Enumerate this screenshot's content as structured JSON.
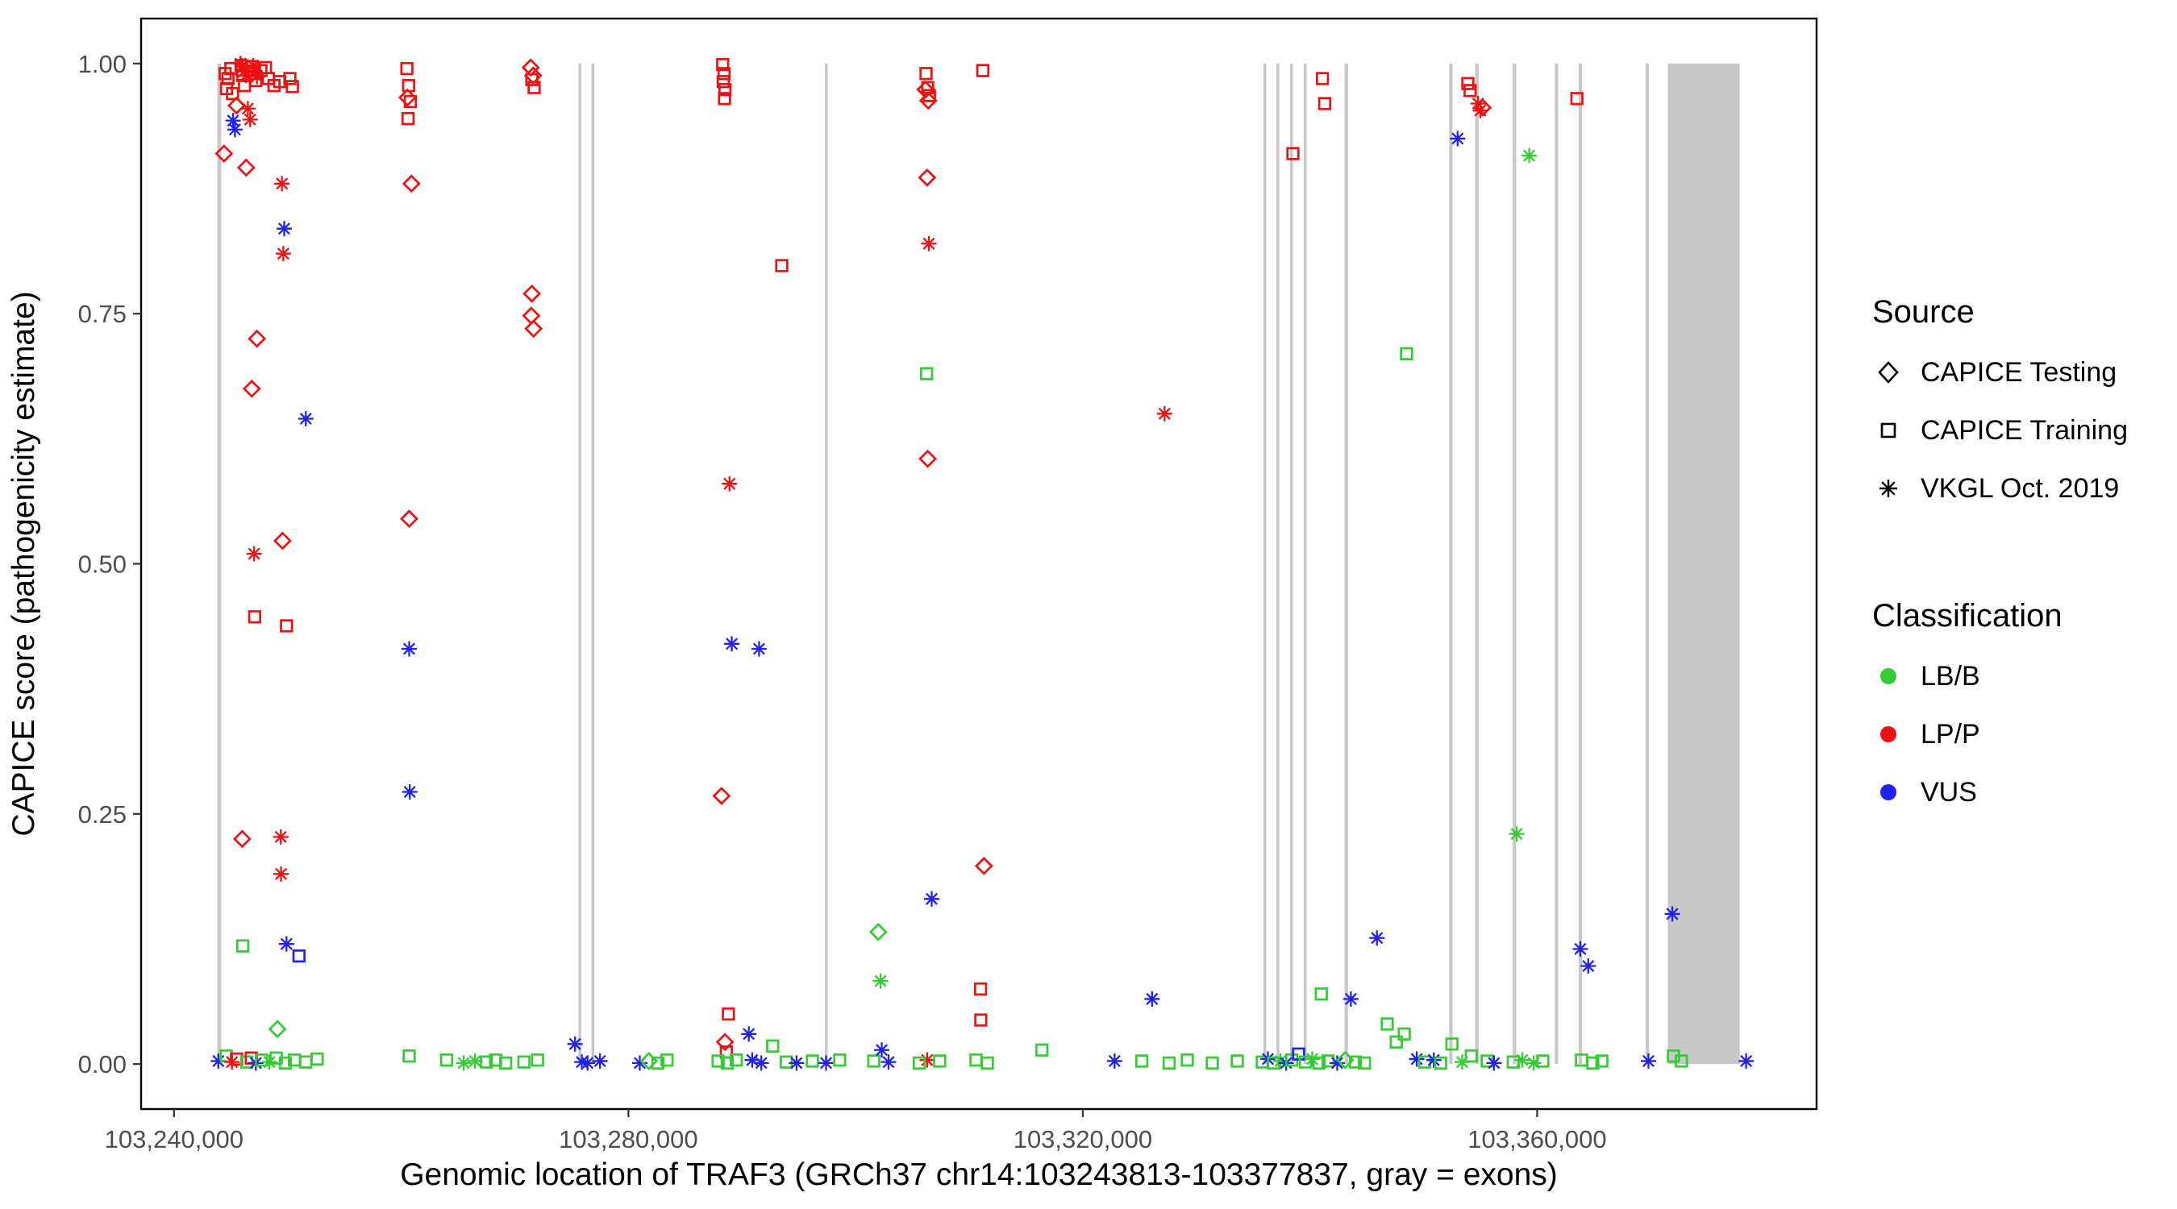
{
  "chart_data": {
    "type": "scatter",
    "title": "",
    "xlabel": "Genomic location of TRAF3 (GRCh37 chr14:103243813-103377837, gray = exons)",
    "ylabel": "CAPICE score (pathogenicity estimate)",
    "xlim": [
      103237100,
      103384600
    ],
    "ylim": [
      -0.045,
      1.045
    ],
    "x_ticks": [
      {
        "value": 103240000,
        "label": "103,240,000"
      },
      {
        "value": 103280000,
        "label": "103,280,000"
      },
      {
        "value": 103320000,
        "label": "103,320,000"
      },
      {
        "value": 103360000,
        "label": "103,360,000"
      }
    ],
    "y_ticks": [
      {
        "value": 0,
        "label": "0.00"
      },
      {
        "value": 0.25,
        "label": "0.25"
      },
      {
        "value": 0.5,
        "label": "0.50"
      },
      {
        "value": 0.75,
        "label": "0.75"
      },
      {
        "value": 1,
        "label": "1.00"
      }
    ],
    "exon_color": "#c8c8c8",
    "exons": [
      [
        103243813,
        103244150
      ],
      [
        103275600,
        103275850
      ],
      [
        103276750,
        103277000
      ],
      [
        103297300,
        103297550
      ],
      [
        103335900,
        103336150
      ],
      [
        103337050,
        103337300
      ],
      [
        103338250,
        103338500
      ],
      [
        103339450,
        103339700
      ],
      [
        103343050,
        103343350
      ],
      [
        103352250,
        103352550
      ],
      [
        103354550,
        103354850
      ],
      [
        103357850,
        103358150
      ],
      [
        103361550,
        103361850
      ],
      [
        103363650,
        103363950
      ],
      [
        103369550,
        103369850
      ],
      [
        103371500,
        103377837
      ]
    ],
    "legend": {
      "source_title": "Source",
      "sources": [
        {
          "label": "CAPICE Testing",
          "shape": "diamond"
        },
        {
          "label": "CAPICE Training",
          "shape": "square"
        },
        {
          "label": "VKGL Oct. 2019",
          "shape": "asterisk"
        }
      ],
      "classification_title": "Classification"
    },
    "classes": [
      {
        "label": "LB/B",
        "color": "#33cc33"
      },
      {
        "label": "LP/P",
        "color": "#ee1111"
      },
      {
        "label": "VUS",
        "color": "#2222ee"
      }
    ],
    "shape_names": [
      "diamond",
      "square",
      "asterisk"
    ],
    "points": [
      [
        103244500,
        0.99,
        1,
        1
      ],
      [
        103244620,
        0.975,
        1,
        1
      ],
      [
        103244750,
        0.985,
        1,
        1
      ],
      [
        103245000,
        0.995,
        1,
        1
      ],
      [
        103245150,
        0.97,
        1,
        1
      ],
      [
        103245900,
        0.998,
        1,
        1
      ],
      [
        103246050,
        0.988,
        1,
        1
      ],
      [
        103246200,
        0.978,
        1,
        1
      ],
      [
        103246900,
        0.997,
        1,
        1
      ],
      [
        103247050,
        0.99,
        1,
        1
      ],
      [
        103247200,
        0.983,
        1,
        1
      ],
      [
        103247650,
        0.993,
        1,
        1
      ],
      [
        103248050,
        0.996,
        1,
        1
      ],
      [
        103248300,
        0.985,
        1,
        1
      ],
      [
        103248800,
        0.978,
        1,
        1
      ],
      [
        103249300,
        0.982,
        1,
        1
      ],
      [
        103250200,
        0.985,
        1,
        1
      ],
      [
        103250420,
        0.977,
        1,
        1
      ],
      [
        103245850,
        1.0,
        2,
        1
      ],
      [
        103246000,
        0.998,
        2,
        1
      ],
      [
        103246150,
        0.992,
        2,
        1
      ],
      [
        103246320,
        0.988,
        2,
        1
      ],
      [
        103246950,
        0.998,
        2,
        1
      ],
      [
        103247120,
        0.993,
        2,
        1
      ],
      [
        103247300,
        0.987,
        2,
        1
      ],
      [
        103246500,
        0.955,
        2,
        1
      ],
      [
        103246700,
        0.944,
        2,
        1
      ],
      [
        103245500,
        0.958,
        0,
        1
      ],
      [
        103244400,
        0.91,
        0,
        1
      ],
      [
        103246350,
        0.896,
        0,
        1
      ],
      [
        103245200,
        0.943,
        2,
        2
      ],
      [
        103245360,
        0.934,
        2,
        2
      ],
      [
        103249500,
        0.88,
        2,
        1
      ],
      [
        103249620,
        0.81,
        2,
        1
      ],
      [
        103249700,
        0.835,
        2,
        2
      ],
      [
        103247300,
        0.725,
        0,
        1
      ],
      [
        103246850,
        0.675,
        0,
        1
      ],
      [
        103249550,
        0.523,
        0,
        1
      ],
      [
        103251600,
        0.645,
        2,
        2
      ],
      [
        103247050,
        0.51,
        2,
        1
      ],
      [
        103247100,
        0.447,
        1,
        1
      ],
      [
        103249900,
        0.438,
        1,
        1
      ],
      [
        103246000,
        0.225,
        0,
        1
      ],
      [
        103249400,
        0.227,
        2,
        1
      ],
      [
        103249420,
        0.19,
        2,
        1
      ],
      [
        103246050,
        0.118,
        1,
        0
      ],
      [
        103249900,
        0.12,
        2,
        2
      ],
      [
        103251000,
        0.108,
        1,
        2
      ],
      [
        103249100,
        0.035,
        0,
        0
      ],
      [
        103243900,
        0.003,
        2,
        2
      ],
      [
        103244600,
        0.008,
        1,
        0
      ],
      [
        103245100,
        0.002,
        2,
        1
      ],
      [
        103245500,
        0.005,
        1,
        1
      ],
      [
        103246400,
        0.002,
        1,
        0
      ],
      [
        103246800,
        0.006,
        1,
        1
      ],
      [
        103247200,
        0.001,
        2,
        2
      ],
      [
        103247700,
        0.004,
        1,
        0
      ],
      [
        103248400,
        0.002,
        2,
        0
      ],
      [
        103249000,
        0.006,
        1,
        0
      ],
      [
        103249800,
        0.001,
        1,
        0
      ],
      [
        103250600,
        0.004,
        1,
        0
      ],
      [
        103251600,
        0.002,
        1,
        0
      ],
      [
        103252600,
        0.005,
        1,
        0
      ],
      [
        103260500,
        0.995,
        1,
        1
      ],
      [
        103260650,
        0.978,
        1,
        1
      ],
      [
        103260800,
        0.962,
        1,
        1
      ],
      [
        103260600,
        0.945,
        1,
        1
      ],
      [
        103260550,
        0.966,
        0,
        1
      ],
      [
        103260900,
        0.88,
        0,
        1
      ],
      [
        103260700,
        0.545,
        0,
        1
      ],
      [
        103260700,
        0.415,
        2,
        2
      ],
      [
        103260750,
        0.272,
        2,
        2
      ],
      [
        103260700,
        0.008,
        1,
        0
      ],
      [
        103264000,
        0.004,
        1,
        0
      ],
      [
        103265500,
        0.001,
        2,
        0
      ],
      [
        103266500,
        0.003,
        2,
        0
      ],
      [
        103267500,
        0.002,
        1,
        0
      ],
      [
        103268300,
        0.004,
        1,
        0
      ],
      [
        103269200,
        0.001,
        1,
        0
      ],
      [
        103271400,
        0.996,
        0,
        1
      ],
      [
        103271620,
        0.988,
        0,
        1
      ],
      [
        103271500,
        0.984,
        1,
        1
      ],
      [
        103271700,
        0.976,
        1,
        1
      ],
      [
        103271500,
        0.77,
        0,
        1
      ],
      [
        103271450,
        0.748,
        0,
        1
      ],
      [
        103271650,
        0.735,
        0,
        1
      ],
      [
        103270800,
        0.002,
        1,
        0
      ],
      [
        103272000,
        0.004,
        1,
        0
      ],
      [
        103275300,
        0.02,
        2,
        2
      ],
      [
        103275900,
        0.002,
        2,
        2
      ],
      [
        103276400,
        0.001,
        2,
        2
      ],
      [
        103277500,
        0.003,
        2,
        2
      ],
      [
        103281000,
        0.001,
        2,
        2
      ],
      [
        103281800,
        0.003,
        0,
        0
      ],
      [
        103282600,
        0.001,
        1,
        0
      ],
      [
        103283400,
        0.004,
        1,
        0
      ],
      [
        103288300,
        0.999,
        1,
        1
      ],
      [
        103288420,
        0.99,
        1,
        1
      ],
      [
        103288350,
        0.982,
        1,
        1
      ],
      [
        103288500,
        0.974,
        1,
        1
      ],
      [
        103288460,
        0.965,
        1,
        1
      ],
      [
        103288900,
        0.58,
        2,
        1
      ],
      [
        103289100,
        0.42,
        2,
        2
      ],
      [
        103291500,
        0.415,
        2,
        2
      ],
      [
        103288200,
        0.268,
        0,
        1
      ],
      [
        103288800,
        0.05,
        1,
        1
      ],
      [
        103288500,
        0.022,
        0,
        1
      ],
      [
        103288620,
        0.012,
        1,
        1
      ],
      [
        103287900,
        0.003,
        1,
        0
      ],
      [
        103288700,
        0.001,
        1,
        0
      ],
      [
        103289500,
        0.004,
        1,
        0
      ],
      [
        103290600,
        0.03,
        2,
        2
      ],
      [
        103290900,
        0.004,
        2,
        2
      ],
      [
        103291700,
        0.001,
        2,
        2
      ],
      [
        103293500,
        0.798,
        1,
        1
      ],
      [
        103292700,
        0.018,
        1,
        0
      ],
      [
        103293900,
        0.002,
        1,
        0
      ],
      [
        103294800,
        0.001,
        2,
        2
      ],
      [
        103296200,
        0.003,
        1,
        0
      ],
      [
        103297400,
        0.001,
        2,
        2
      ],
      [
        103298600,
        0.004,
        1,
        0
      ],
      [
        103302000,
        0.132,
        0,
        0
      ],
      [
        103302200,
        0.083,
        2,
        0
      ],
      [
        103301600,
        0.003,
        1,
        0
      ],
      [
        103302300,
        0.014,
        2,
        2
      ],
      [
        103302900,
        0.002,
        2,
        2
      ],
      [
        103306200,
        0.99,
        1,
        1
      ],
      [
        103306350,
        0.976,
        1,
        1
      ],
      [
        103306500,
        0.968,
        1,
        1
      ],
      [
        103306150,
        0.974,
        0,
        1
      ],
      [
        103306400,
        0.963,
        0,
        1
      ],
      [
        103306300,
        0.886,
        0,
        1
      ],
      [
        103306450,
        0.82,
        2,
        1
      ],
      [
        103306250,
        0.69,
        1,
        0
      ],
      [
        103306350,
        0.605,
        0,
        1
      ],
      [
        103306700,
        0.165,
        2,
        2
      ],
      [
        103306300,
        0.004,
        2,
        1
      ],
      [
        103305600,
        0.001,
        1,
        0
      ],
      [
        103307400,
        0.003,
        1,
        0
      ],
      [
        103311200,
        0.993,
        1,
        1
      ],
      [
        103311300,
        0.198,
        0,
        1
      ],
      [
        103311000,
        0.075,
        1,
        1
      ],
      [
        103311020,
        0.044,
        1,
        1
      ],
      [
        103310600,
        0.004,
        1,
        0
      ],
      [
        103311600,
        0.001,
        1,
        0
      ],
      [
        103316400,
        0.014,
        1,
        0
      ],
      [
        103322800,
        0.003,
        2,
        2
      ],
      [
        103327200,
        0.65,
        2,
        1
      ],
      [
        103326100,
        0.065,
        2,
        2
      ],
      [
        103325200,
        0.003,
        1,
        0
      ],
      [
        103327600,
        0.001,
        1,
        0
      ],
      [
        103329200,
        0.004,
        1,
        0
      ],
      [
        103331400,
        0.001,
        1,
        0
      ],
      [
        103333600,
        0.003,
        1,
        0
      ],
      [
        103338500,
        0.91,
        1,
        1
      ],
      [
        103341100,
        0.985,
        1,
        1
      ],
      [
        103341300,
        0.96,
        1,
        1
      ],
      [
        103341000,
        0.07,
        1,
        0
      ],
      [
        103343600,
        0.065,
        2,
        2
      ],
      [
        103345900,
        0.126,
        2,
        2
      ],
      [
        103335800,
        0.002,
        1,
        0
      ],
      [
        103336300,
        0.005,
        2,
        2
      ],
      [
        103336800,
        0.001,
        1,
        0
      ],
      [
        103337400,
        0.003,
        2,
        0
      ],
      [
        103337900,
        0.001,
        2,
        2
      ],
      [
        103338400,
        0.004,
        1,
        0
      ],
      [
        103339000,
        0.01,
        1,
        2
      ],
      [
        103339600,
        0.002,
        1,
        0
      ],
      [
        103340200,
        0.005,
        2,
        0
      ],
      [
        103340800,
        0.001,
        1,
        0
      ],
      [
        103341600,
        0.003,
        1,
        0
      ],
      [
        103342400,
        0.001,
        2,
        2
      ],
      [
        103343100,
        0.004,
        0,
        0
      ],
      [
        103344000,
        0.002,
        1,
        0
      ],
      [
        103344800,
        0.001,
        1,
        0
      ],
      [
        103346800,
        0.04,
        1,
        0
      ],
      [
        103347600,
        0.022,
        1,
        0
      ],
      [
        103348500,
        0.71,
        1,
        0
      ],
      [
        103348300,
        0.03,
        1,
        0
      ],
      [
        103349400,
        0.005,
        2,
        2
      ],
      [
        103350100,
        0.002,
        1,
        0
      ],
      [
        103350900,
        0.004,
        2,
        2
      ],
      [
        103351500,
        0.001,
        1,
        0
      ],
      [
        103353000,
        0.925,
        2,
        2
      ],
      [
        103353900,
        0.98,
        1,
        1
      ],
      [
        103354100,
        0.973,
        1,
        1
      ],
      [
        103354800,
        0.96,
        2,
        1
      ],
      [
        103355000,
        0.953,
        2,
        1
      ],
      [
        103355200,
        0.956,
        0,
        1
      ],
      [
        103352500,
        0.02,
        1,
        0
      ],
      [
        103353400,
        0.002,
        2,
        0
      ],
      [
        103354200,
        0.008,
        1,
        0
      ],
      [
        103355600,
        0.003,
        1,
        0
      ],
      [
        103356200,
        0.001,
        2,
        2
      ],
      [
        103358200,
        0.23,
        2,
        0
      ],
      [
        103359300,
        0.908,
        2,
        0
      ],
      [
        103357900,
        0.002,
        1,
        0
      ],
      [
        103358700,
        0.004,
        2,
        0
      ],
      [
        103359700,
        0.001,
        2,
        0
      ],
      [
        103360500,
        0.003,
        1,
        0
      ],
      [
        103363500,
        0.965,
        1,
        1
      ],
      [
        103363800,
        0.115,
        2,
        2
      ],
      [
        103364500,
        0.098,
        2,
        2
      ],
      [
        103363900,
        0.004,
        1,
        0
      ],
      [
        103364900,
        0.001,
        1,
        0
      ],
      [
        103365700,
        0.003,
        1,
        0
      ],
      [
        103369800,
        0.003,
        2,
        2
      ],
      [
        103371900,
        0.15,
        2,
        2
      ],
      [
        103372000,
        0.008,
        1,
        0
      ],
      [
        103372700,
        0.003,
        1,
        0
      ],
      [
        103378400,
        0.003,
        2,
        2
      ]
    ]
  }
}
